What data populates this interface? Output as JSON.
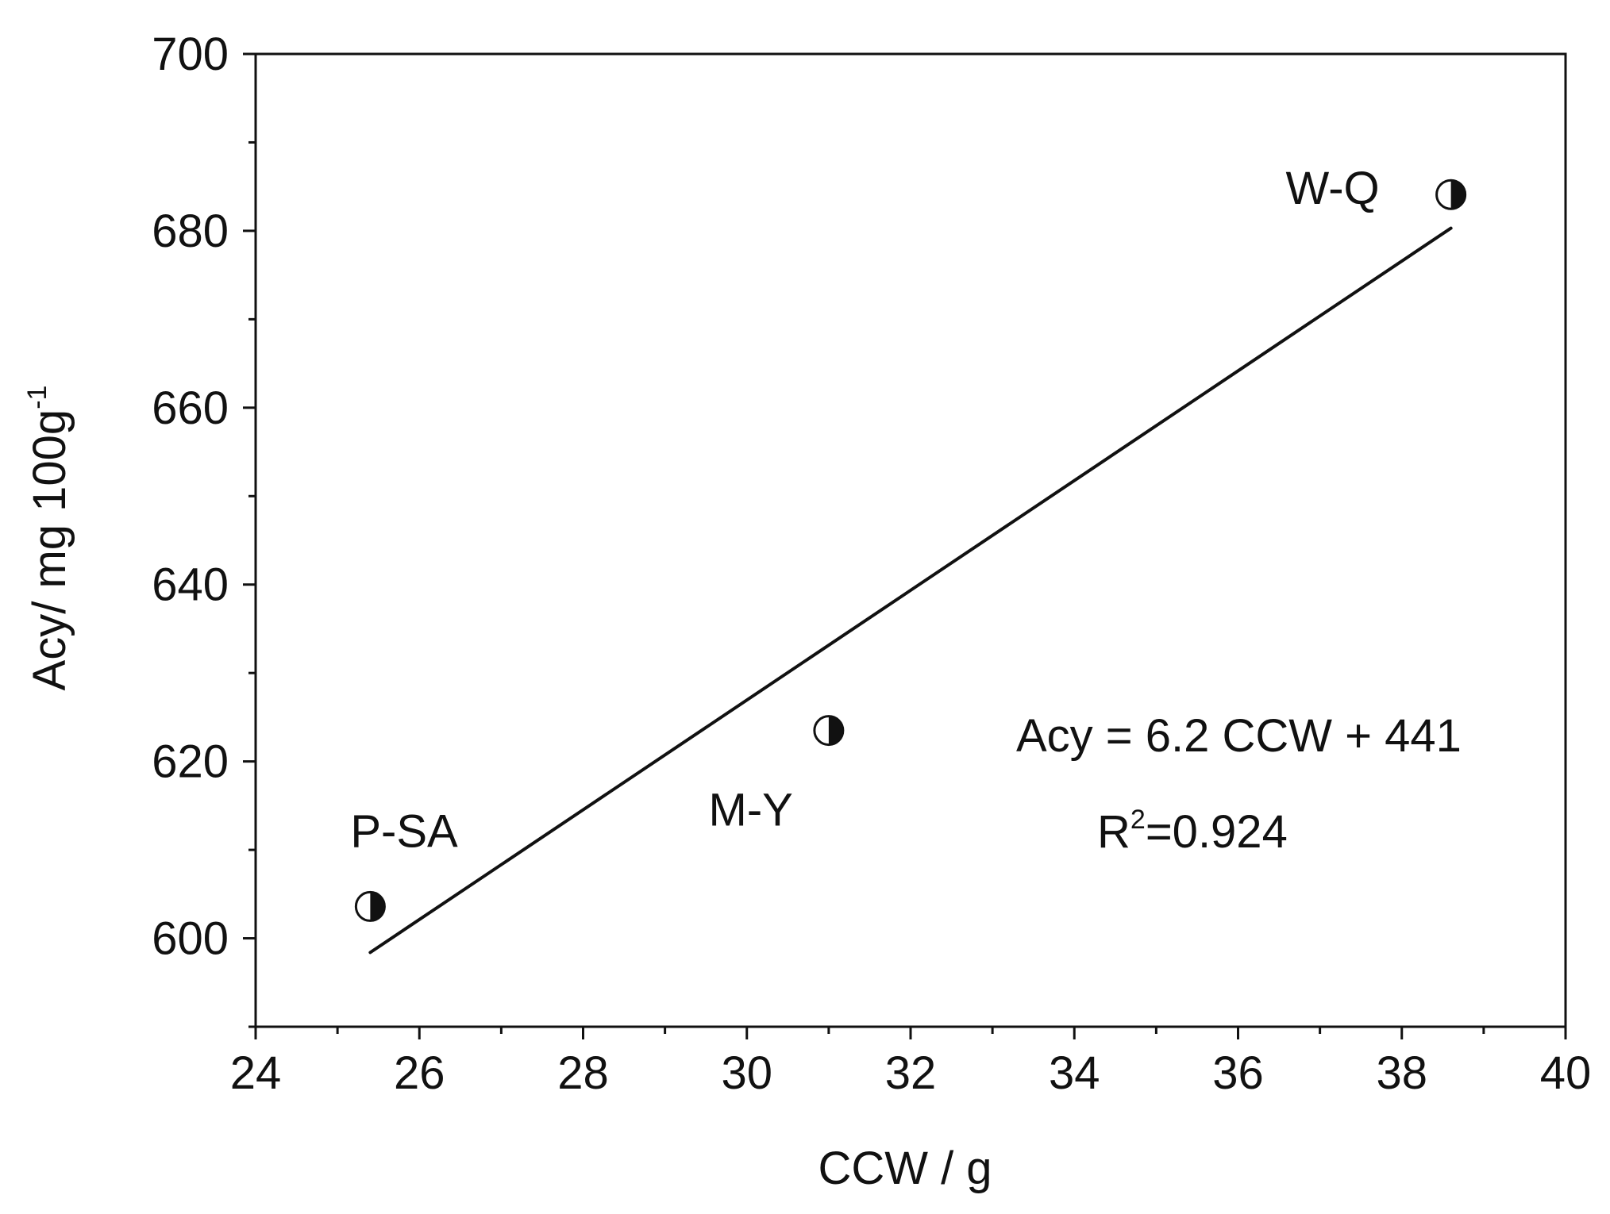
{
  "chart_data": {
    "type": "scatter",
    "title": "",
    "xlabel": "CCW / g",
    "ylabel": {
      "main": "Acy/ mg 100g",
      "superscript": "-1"
    },
    "xlim": [
      24,
      40
    ],
    "ylim": [
      590,
      700
    ],
    "x_ticks": [
      24,
      26,
      28,
      30,
      32,
      34,
      36,
      38,
      40
    ],
    "x_minor_step": 1,
    "y_ticks": [
      600,
      620,
      640,
      660,
      680,
      700
    ],
    "y_minor_step": 10,
    "grid": false,
    "legend": "none",
    "marker": "half-filled-circle",
    "colors": {
      "axis": "#111111",
      "marker": "#111111",
      "fit_line": "#111111",
      "background": "#ffffff"
    },
    "points": [
      {
        "x": 25.4,
        "y": 603.6,
        "label": "P-SA"
      },
      {
        "x": 31.0,
        "y": 623.5,
        "label": "M-Y"
      },
      {
        "x": 38.6,
        "y": 684.1,
        "label": "W-Q"
      }
    ],
    "fit_line": {
      "x": [
        25.4,
        38.6
      ],
      "y": [
        598.4,
        680.3
      ]
    },
    "annotations": {
      "equation": "Acy = 6.2 CCW + 441",
      "r2_prefix": "R",
      "r2_superscript": "2",
      "r2_value": "=0.924"
    }
  }
}
